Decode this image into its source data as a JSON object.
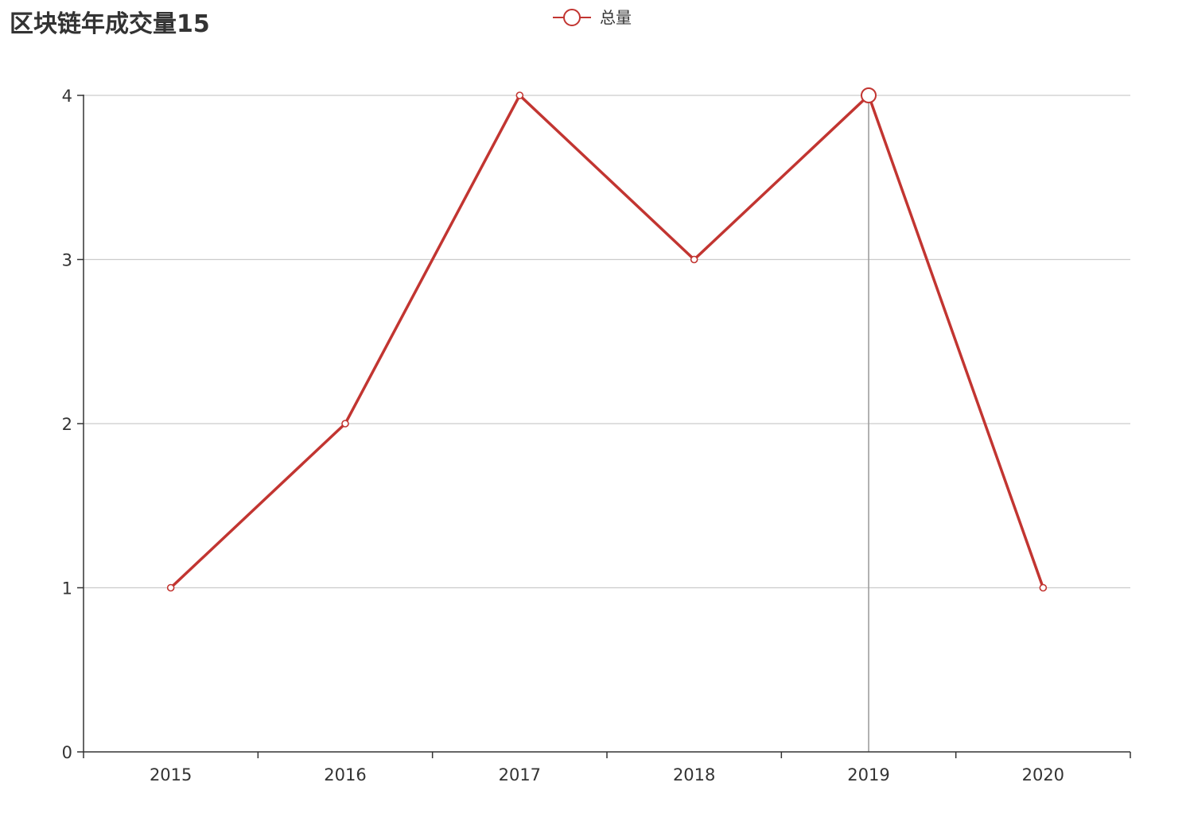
{
  "chart_data": {
    "type": "line",
    "title": "区块链年成交量15",
    "categories": [
      "2015",
      "2016",
      "2017",
      "2018",
      "2019",
      "2020"
    ],
    "series": [
      {
        "name": "总量",
        "values": [
          1,
          2,
          4,
          3,
          4,
          1
        ]
      }
    ],
    "xlabel": "",
    "ylabel": "",
    "ylim": [
      0,
      4
    ],
    "yticks": [
      0,
      1,
      2,
      3,
      4
    ],
    "grid": true,
    "legend_position": "top-center",
    "highlighted_category": "2019",
    "colors": {
      "series": "#c23531",
      "axis": "#333333",
      "grid": "#cccccc",
      "pointer": "#999999",
      "text": "#333333"
    }
  }
}
